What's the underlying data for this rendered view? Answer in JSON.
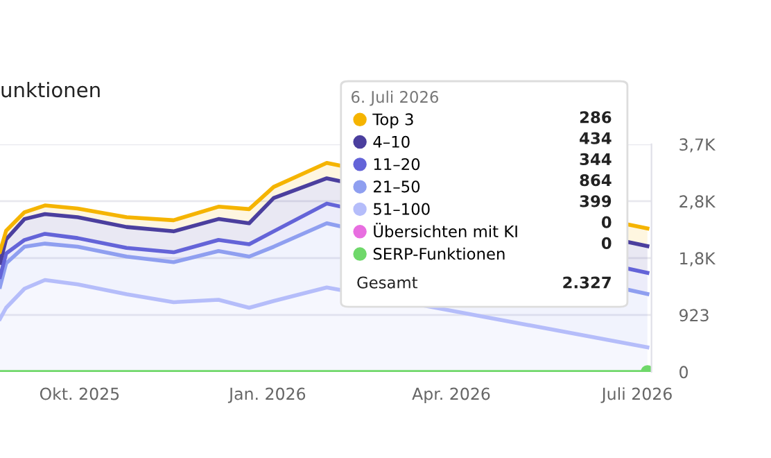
{
  "chart_data": {
    "type": "area",
    "stacked": true,
    "title": "unktionen",
    "legend_title": "6. Juli 2026",
    "x": [
      "2025-08-23",
      "2025-08-26",
      "2025-09-04",
      "2025-09-14",
      "2025-09-30",
      "2025-10-24",
      "2025-11-16",
      "2025-12-08",
      "2025-12-23",
      "2026-01-04",
      "2026-01-30",
      "2026-07-06"
    ],
    "series": [
      {
        "name": "Übersichten mit KI",
        "type": "line",
        "color": "#e86ee0",
        "values": [
          null,
          null,
          null,
          null,
          null,
          null,
          null,
          null,
          null,
          null,
          null,
          null
        ]
      },
      {
        "name": "SERP-Funktionen",
        "type": "line",
        "color": "#6fd86a",
        "values": [
          0,
          0,
          0,
          0,
          0,
          0,
          0,
          0,
          0,
          0,
          0,
          0
        ]
      },
      {
        "name": "51–100",
        "color": "#b5bdfa",
        "values": [
          860,
          1040,
          1350,
          1490,
          1420,
          1260,
          1130,
          1170,
          1040,
          1150,
          1370,
          399
        ]
      },
      {
        "name": "21–50",
        "color": "#8f9ff0",
        "values": [
          520,
          720,
          680,
          590,
          610,
          610,
          650,
          790,
          830,
          880,
          1040,
          864
        ]
      },
      {
        "name": "11–20",
        "color": "#6464d8",
        "values": [
          160,
          160,
          110,
          160,
          140,
          140,
          160,
          180,
          200,
          250,
          320,
          344
        ]
      },
      {
        "name": "4–10",
        "color": "#4b3f9e",
        "values": [
          230,
          230,
          340,
          320,
          340,
          340,
          340,
          340,
          340,
          540,
          410,
          434
        ]
      },
      {
        "name": "Top 3",
        "color": "#f5b400",
        "values": [
          180,
          140,
          110,
          140,
          140,
          160,
          180,
          200,
          230,
          180,
          250,
          286
        ]
      }
    ],
    "xlim": [
      "2025-08-23",
      "2026-07-08"
    ],
    "xticks": [
      {
        "value": "2025-10-01",
        "label": "Okt. 2025"
      },
      {
        "value": "2026-01-01",
        "label": "Jan. 2026"
      },
      {
        "value": "2026-04-01",
        "label": "Apr. 2026"
      },
      {
        "value": "2026-07-01",
        "label": "Juli 2026"
      }
    ],
    "ylim": [
      0,
      3692
    ],
    "yticks": [
      0,
      923,
      {
        "value": 1846,
        "label": "1,8K"
      },
      {
        "value": 2769,
        "label": "2,8K"
      },
      {
        "value": 3692,
        "label": "3,7K"
      }
    ],
    "grid": "y",
    "legend": "top right",
    "annotations": [
      "286",
      "434",
      "344",
      "864",
      "399",
      "0",
      "0",
      "Gesamt",
      "2.327"
    ]
  }
}
